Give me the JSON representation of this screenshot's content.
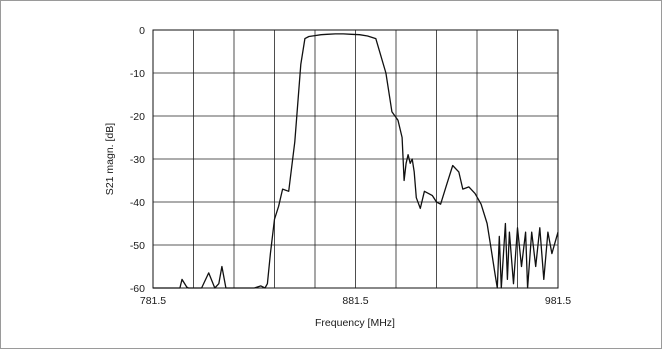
{
  "chart_data": {
    "type": "line",
    "title": "",
    "xlabel": "Frequency [MHz]",
    "ylabel": "S21 magn. [dB]",
    "xlim": [
      781.5,
      981.5
    ],
    "ylim": [
      -60,
      0
    ],
    "x_ticks": [
      781.5,
      881.5,
      981.5
    ],
    "x_tick_labels": [
      "781.5",
      "881.5",
      "981.5"
    ],
    "y_ticks": [
      0,
      -10,
      -20,
      -30,
      -40,
      -50,
      -60
    ],
    "y_tick_labels": [
      "0",
      "-10",
      "-20",
      "-30",
      "-40",
      "-50",
      "-60"
    ],
    "grid": true,
    "vertical_gridlines": 10,
    "legend": "none",
    "line_color": "#111111",
    "series": [
      {
        "x": [
          781.5,
          794.8,
          795.8,
          798.2,
          799.0,
          800.5,
          805.5,
          809.0,
          812.0,
          814.0,
          815.5,
          817.5,
          819.0,
          820.5,
          823.5,
          826.5,
          831.5,
          834.8,
          836.8,
          838.0,
          839.5,
          841.5,
          843.5,
          845.5,
          848.5,
          851.5,
          854.5,
          856.5,
          858.5,
          861.5,
          864.5,
          867.5,
          871.5,
          875.5,
          879.5,
          883.5,
          887.5,
          891.5,
          896.5,
          899.5,
          902.5,
          904.5,
          905.5,
          906.5,
          907.5,
          908.5,
          909.5,
          910.5,
          911.5,
          913.5,
          915.5,
          917.5,
          919.5,
          921.5,
          923.5,
          926.5,
          929.5,
          932.5,
          934.5,
          937.5,
          940.5,
          943.5,
          946.5,
          948.5,
          950.5,
          951.5,
          952.5,
          953.5,
          955.5,
          956.5,
          957.5,
          959.5,
          961.5,
          963.5,
          965.5,
          966.5,
          968.5,
          970.5,
          972.5,
          974.5,
          976.5,
          978.5,
          981.5
        ],
        "y": [
          -60.0,
          -60.0,
          -58.0,
          -59.8,
          -60.0,
          -60.0,
          -60.0,
          -56.5,
          -60.0,
          -59.0,
          -55.0,
          -60.0,
          -60.0,
          -60.0,
          -60.0,
          -60.0,
          -60.0,
          -59.5,
          -60.0,
          -59.0,
          -52.0,
          -44.0,
          -41.0,
          -37.0,
          -37.5,
          -26.0,
          -8.0,
          -2.0,
          -1.5,
          -1.3,
          -1.1,
          -1.0,
          -0.9,
          -0.9,
          -1.0,
          -1.1,
          -1.4,
          -2.0,
          -10.0,
          -19.0,
          -21.0,
          -25.0,
          -35.0,
          -31.0,
          -29.0,
          -31.0,
          -30.0,
          -33.0,
          -39.0,
          -41.5,
          -37.5,
          -38.0,
          -38.5,
          -40.0,
          -40.5,
          -36.0,
          -31.5,
          -33.0,
          -37.0,
          -36.5,
          -38.0,
          -40.5,
          -45.0,
          -51.0,
          -57.0,
          -60.0,
          -48.0,
          -60.0,
          -45.0,
          -58.0,
          -47.0,
          -59.0,
          -46.0,
          -55.0,
          -47.0,
          -60.0,
          -47.0,
          -55.0,
          -46.0,
          -58.0,
          -47.0,
          -52.0,
          -47.0
        ]
      }
    ]
  }
}
